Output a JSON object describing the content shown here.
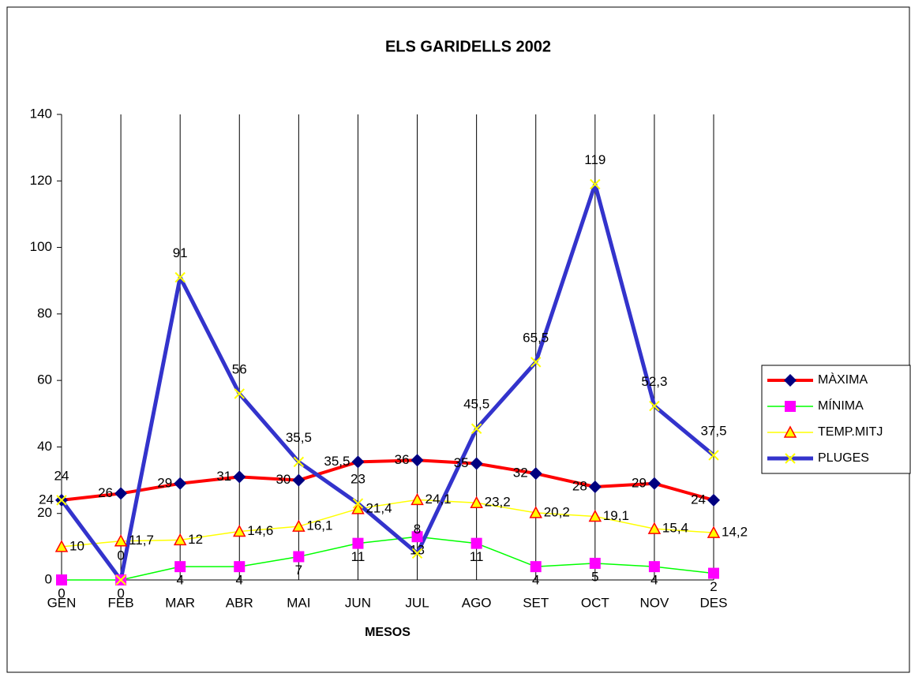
{
  "chart_data": {
    "type": "line",
    "title": "ELS GARIDELLS 2002",
    "x_label": "MESOS",
    "categories": [
      "GEN",
      "FEB",
      "MAR",
      "ABR",
      "MAI",
      "JUN",
      "JUL",
      "AGO",
      "SET",
      "OCT",
      "NOV",
      "DES"
    ],
    "ylim": [
      0,
      140
    ],
    "yticks": [
      0,
      20,
      40,
      60,
      80,
      100,
      120,
      140
    ],
    "grid": "x",
    "legend": "right",
    "series": [
      {
        "name": "MÀXIMA",
        "color": "#ff0000",
        "marker": "diamond",
        "marker_color": "#000080",
        "label_pos": "left",
        "values": [
          24,
          26,
          29,
          31,
          30,
          35.5,
          36,
          35,
          32,
          28,
          29,
          24
        ],
        "value_labels": [
          "24",
          "26",
          "29",
          "31",
          "30",
          "35,5",
          "36",
          "35",
          "32",
          "28",
          "29",
          "24"
        ]
      },
      {
        "name": "MÍNIMA",
        "color": "#00ff00",
        "marker": "square",
        "marker_color": "#ff00ff",
        "label_pos": "below",
        "values": [
          0,
          0,
          4,
          4,
          7,
          11,
          13,
          11,
          4,
          5,
          4,
          2
        ],
        "value_labels": [
          "0",
          "0",
          "4",
          "4",
          "7",
          "11",
          "13",
          "11",
          "4",
          "5",
          "4",
          "2"
        ]
      },
      {
        "name": "TEMP.MITJ",
        "color": "#ffff00",
        "marker": "triangle",
        "marker_color": "#ffff00",
        "label_pos": "right",
        "values": [
          10,
          11.7,
          12,
          14.6,
          16.1,
          21.4,
          24.1,
          23.2,
          20.2,
          19.1,
          15.4,
          14.2
        ],
        "value_labels": [
          "10",
          "11,7",
          "12",
          "14,6",
          "16,1",
          "21,4",
          "24,1",
          "23,2",
          "20,2",
          "19,1",
          "15,4",
          "14,2"
        ]
      },
      {
        "name": "PLUGES",
        "color": "#3333cc",
        "marker": "x",
        "marker_color": "#ffff00",
        "label_pos": "above",
        "values": [
          24,
          0,
          91,
          56,
          35.5,
          23,
          8,
          45.5,
          65.5,
          119,
          52.3,
          37.5
        ],
        "value_labels": [
          "24",
          "0",
          "91",
          "56",
          "35,5",
          "23",
          "8",
          "45,5",
          "65,5",
          "119",
          "52,3",
          "37,5"
        ]
      }
    ]
  }
}
